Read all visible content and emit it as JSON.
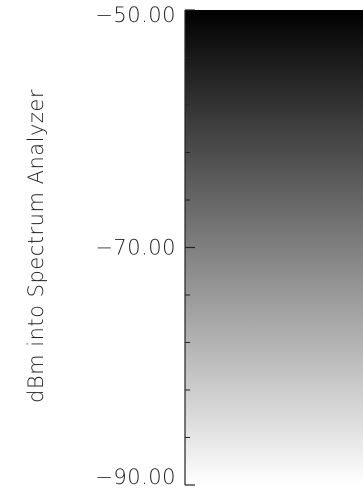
{
  "chart_data": {
    "type": "heatmap",
    "title": "",
    "ylabel": "dBm into Spectrum Analyzer",
    "ylim": [
      -90.0,
      -50.0
    ],
    "tick_values": [
      -50.0,
      -70.0,
      -90.0
    ],
    "tick_labels": [
      "−50.00",
      "−70.00",
      "−90.00"
    ],
    "minor_tick_step": 4,
    "colormap": "grayscale",
    "color_at_max": "#000000",
    "color_at_min": "#ffffff"
  }
}
